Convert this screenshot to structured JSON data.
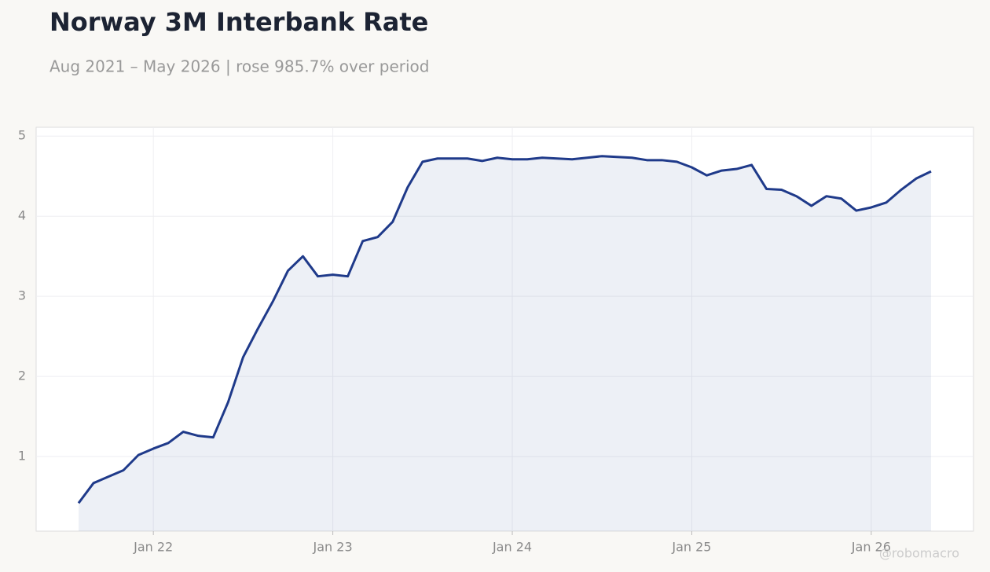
{
  "chart_data": {
    "type": "line",
    "title": "Norway 3M Interbank Rate",
    "subtitle": "Aug 2021 – May 2026 | rose 985.7% over period",
    "watermark": "@robomacro",
    "x": [
      "2021-08",
      "2021-09",
      "2021-10",
      "2021-11",
      "2021-12",
      "2022-01",
      "2022-02",
      "2022-03",
      "2022-04",
      "2022-05",
      "2022-06",
      "2022-07",
      "2022-08",
      "2022-09",
      "2022-10",
      "2022-11",
      "2022-12",
      "2023-01",
      "2023-02",
      "2023-03",
      "2023-04",
      "2023-05",
      "2023-06",
      "2023-07",
      "2023-08",
      "2023-09",
      "2023-10",
      "2023-11",
      "2023-12",
      "2024-01",
      "2024-02",
      "2024-03",
      "2024-04",
      "2024-05",
      "2024-06",
      "2024-07",
      "2024-08",
      "2024-09",
      "2024-10",
      "2024-11",
      "2024-12",
      "2025-01",
      "2025-02",
      "2025-03",
      "2025-04",
      "2025-05",
      "2025-06",
      "2025-07",
      "2025-08",
      "2025-09",
      "2025-10",
      "2025-11",
      "2025-12",
      "2026-01",
      "2026-02",
      "2026-03",
      "2026-04",
      "2026-05"
    ],
    "series": [
      {
        "name": "Norway 3M Interbank Rate",
        "color": "#1f3a8a",
        "values": [
          0.42,
          0.67,
          0.75,
          0.83,
          1.02,
          1.1,
          1.17,
          1.31,
          1.26,
          1.24,
          1.68,
          2.24,
          2.6,
          2.94,
          3.32,
          3.5,
          3.25,
          3.27,
          3.25,
          3.69,
          3.74,
          3.93,
          4.36,
          4.68,
          4.72,
          4.72,
          4.72,
          4.69,
          4.73,
          4.71,
          4.71,
          4.73,
          4.72,
          4.71,
          4.73,
          4.75,
          4.74,
          4.73,
          4.7,
          4.7,
          4.68,
          4.61,
          4.51,
          4.57,
          4.59,
          4.64,
          4.34,
          4.33,
          4.25,
          4.13,
          4.25,
          4.22,
          4.07,
          4.11,
          4.17,
          4.33,
          4.47,
          4.56
        ]
      }
    ],
    "xticks": [
      {
        "value": "2022-01",
        "label": "Jan 22"
      },
      {
        "value": "2023-01",
        "label": "Jan 23"
      },
      {
        "value": "2024-01",
        "label": "Jan 24"
      },
      {
        "value": "2025-01",
        "label": "Jan 25"
      },
      {
        "value": "2026-01",
        "label": "Jan 26"
      }
    ],
    "ylim": [
      0.07,
      5.11
    ],
    "yticks": [
      1,
      2,
      3,
      4,
      5
    ],
    "grid": true
  }
}
